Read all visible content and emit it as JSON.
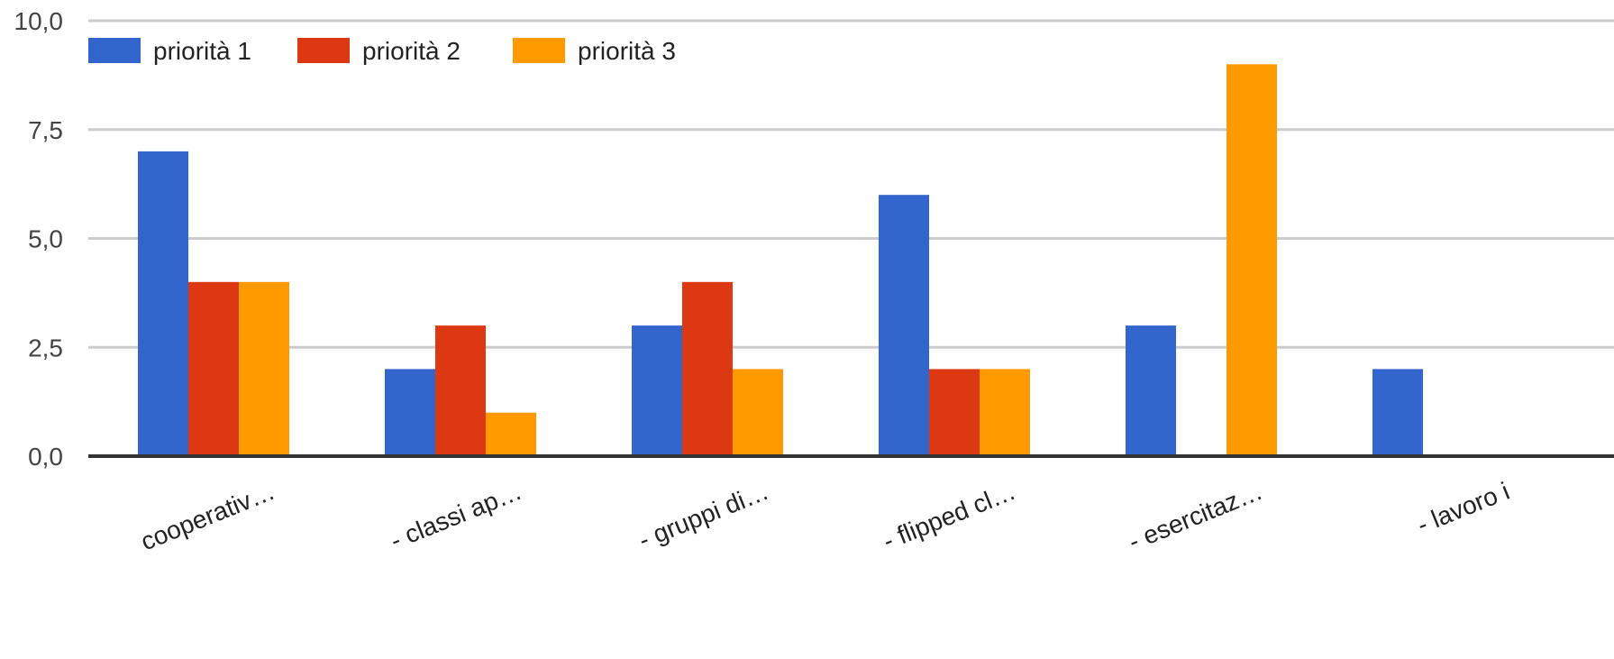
{
  "chart_data": {
    "type": "bar",
    "title": "",
    "xlabel": "",
    "ylabel": "",
    "ylim": [
      0,
      10
    ],
    "y_ticks": [
      "0,0",
      "2,5",
      "5,0",
      "7,5",
      "10,0"
    ],
    "y_tick_values": [
      0,
      2.5,
      5,
      7.5,
      10
    ],
    "grid": true,
    "legend_position": "top-left",
    "categories": [
      "cooperativ…",
      "- classi ap…",
      "- gruppi di…",
      "- flipped cl…",
      "- esercitaz…",
      "- lavoro i"
    ],
    "series": [
      {
        "name": "priorità 1",
        "color": "#3366cc",
        "values": [
          7,
          2,
          3,
          6,
          3,
          2
        ]
      },
      {
        "name": "priorità 2",
        "color": "#dc3912",
        "values": [
          4,
          3,
          4,
          2,
          0,
          null
        ]
      },
      {
        "name": "priorità 3",
        "color": "#ff9900",
        "values": [
          4,
          1,
          2,
          2,
          9,
          null
        ]
      }
    ]
  }
}
